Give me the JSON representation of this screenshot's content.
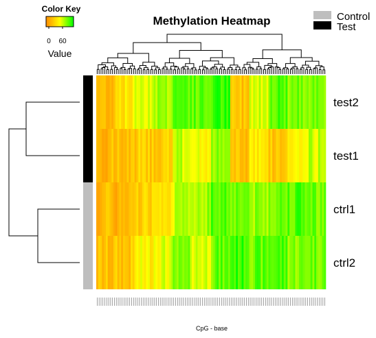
{
  "chart_data": {
    "type": "heatmap",
    "title": "Methylation Heatmap",
    "xlabel": "CpG - base",
    "ylabel": "",
    "rows": [
      "test2",
      "test1",
      "ctrl1",
      "ctrl2"
    ],
    "row_groups": [
      "Test",
      "Test",
      "Control",
      "Control"
    ],
    "legend": {
      "placement": "top-right",
      "entries": [
        {
          "label": "Control",
          "color": "#bebebe"
        },
        {
          "label": "Test",
          "color": "#000000"
        }
      ]
    },
    "color_key": {
      "title": "Color Key",
      "label": "Value",
      "ticks": [
        "0",
        "60"
      ],
      "range": [
        0,
        100
      ],
      "low_color": "#ff8c00",
      "mid_color": "#ffff00",
      "high_color": "#00ff00"
    },
    "column_count": 120,
    "segments": [
      {
        "cols": 10,
        "values": [
          22,
          20,
          20,
          22
        ]
      },
      {
        "cols": 10,
        "values": [
          40,
          22,
          18,
          25
        ]
      },
      {
        "cols": 10,
        "values": [
          60,
          28,
          32,
          45
        ]
      },
      {
        "cols": 10,
        "values": [
          70,
          30,
          45,
          55
        ]
      },
      {
        "cols": 10,
        "values": [
          85,
          60,
          60,
          70
        ]
      },
      {
        "cols": 10,
        "values": [
          80,
          50,
          70,
          60
        ]
      },
      {
        "cols": 10,
        "values": [
          90,
          70,
          85,
          80
        ]
      },
      {
        "cols": 10,
        "values": [
          25,
          22,
          80,
          90
        ]
      },
      {
        "cols": 10,
        "values": [
          60,
          45,
          70,
          80
        ]
      },
      {
        "cols": 10,
        "values": [
          85,
          25,
          80,
          85
        ]
      },
      {
        "cols": 10,
        "values": [
          75,
          45,
          85,
          75
        ]
      },
      {
        "cols": 10,
        "values": [
          80,
          60,
          80,
          80
        ]
      }
    ],
    "row_dendrogram": "((test2,test1),(ctrl1,ctrl2))",
    "column_dendrogram": true
  }
}
